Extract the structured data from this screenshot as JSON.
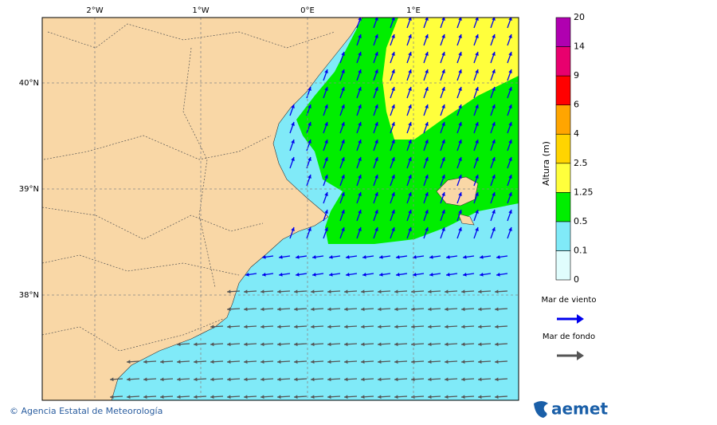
{
  "map": {
    "lon_labels": [
      "2°W",
      "1°W",
      "0°E",
      "1°E"
    ],
    "lat_labels": [
      "40°N",
      "39°N",
      "38°N"
    ],
    "colorbar": {
      "title": "Altura (m)",
      "levels": [
        "0",
        "0.1",
        "0.5",
        "1.25",
        "2.5",
        "4",
        "6",
        "9",
        "14",
        "20"
      ],
      "colors": [
        "#e0fdfd",
        "#80eaf8",
        "#00ee00",
        "#ffff3c",
        "#ffd400",
        "#ffa500",
        "#ff0000",
        "#e8006e",
        "#b000b0"
      ]
    },
    "legend": [
      {
        "name": "Mar de viento",
        "color": "#0000ee"
      },
      {
        "name": "Mar de fondo",
        "color": "#555555"
      }
    ],
    "footer": {
      "credit": "© Agencia Estatal de Meteorología",
      "logo": "aemet"
    }
  }
}
